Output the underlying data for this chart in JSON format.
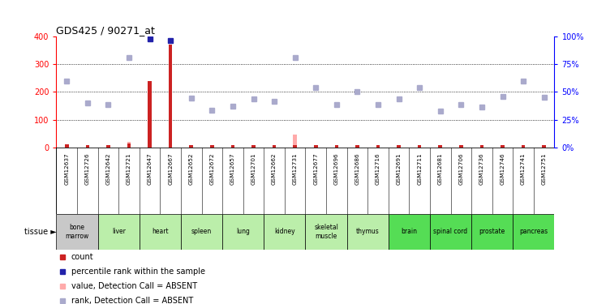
{
  "title": "GDS425 / 90271_at",
  "samples": [
    "GSM12637",
    "GSM12726",
    "GSM12642",
    "GSM12721",
    "GSM12647",
    "GSM12667",
    "GSM12652",
    "GSM12672",
    "GSM12657",
    "GSM12701",
    "GSM12662",
    "GSM12731",
    "GSM12677",
    "GSM12696",
    "GSM12686",
    "GSM12716",
    "GSM12691",
    "GSM12711",
    "GSM12681",
    "GSM12706",
    "GSM12736",
    "GSM12746",
    "GSM12741",
    "GSM12751"
  ],
  "tissue_defs": [
    {
      "name": "bone\nmarrow",
      "start": 0,
      "end": 2,
      "color": "#c8c8c8"
    },
    {
      "name": "liver",
      "start": 2,
      "end": 4,
      "color": "#bbeeaa"
    },
    {
      "name": "heart",
      "start": 4,
      "end": 6,
      "color": "#bbeeaa"
    },
    {
      "name": "spleen",
      "start": 6,
      "end": 8,
      "color": "#bbeeaa"
    },
    {
      "name": "lung",
      "start": 8,
      "end": 10,
      "color": "#bbeeaa"
    },
    {
      "name": "kidney",
      "start": 10,
      "end": 12,
      "color": "#bbeeaa"
    },
    {
      "name": "skeletal\nmuscle",
      "start": 12,
      "end": 14,
      "color": "#bbeeaa"
    },
    {
      "name": "thymus",
      "start": 14,
      "end": 16,
      "color": "#bbeeaa"
    },
    {
      "name": "brain",
      "start": 16,
      "end": 18,
      "color": "#55dd55"
    },
    {
      "name": "spinal cord",
      "start": 18,
      "end": 20,
      "color": "#55dd55"
    },
    {
      "name": "prostate",
      "start": 20,
      "end": 22,
      "color": "#55dd55"
    },
    {
      "name": "pancreas",
      "start": 22,
      "end": 24,
      "color": "#55dd55"
    }
  ],
  "red_bars": [
    {
      "idx": 0,
      "val": 10
    },
    {
      "idx": 1,
      "val": 8
    },
    {
      "idx": 2,
      "val": 8
    },
    {
      "idx": 3,
      "val": 15
    },
    {
      "idx": 4,
      "val": 240
    },
    {
      "idx": 5,
      "val": 370
    },
    {
      "idx": 6,
      "val": 8
    },
    {
      "idx": 7,
      "val": 8
    },
    {
      "idx": 8,
      "val": 8
    },
    {
      "idx": 9,
      "val": 8
    },
    {
      "idx": 10,
      "val": 8
    },
    {
      "idx": 11,
      "val": 8
    },
    {
      "idx": 12,
      "val": 8
    },
    {
      "idx": 13,
      "val": 8
    },
    {
      "idx": 14,
      "val": 8
    },
    {
      "idx": 15,
      "val": 8
    },
    {
      "idx": 16,
      "val": 8
    },
    {
      "idx": 17,
      "val": 8
    },
    {
      "idx": 18,
      "val": 8
    },
    {
      "idx": 19,
      "val": 8
    },
    {
      "idx": 20,
      "val": 8
    },
    {
      "idx": 21,
      "val": 8
    },
    {
      "idx": 22,
      "val": 8
    },
    {
      "idx": 23,
      "val": 8
    }
  ],
  "pink_bars": [
    {
      "idx": 0,
      "val": 12
    },
    {
      "idx": 1,
      "val": 8
    },
    {
      "idx": 2,
      "val": 8
    },
    {
      "idx": 3,
      "val": 20
    },
    {
      "idx": 6,
      "val": 8
    },
    {
      "idx": 7,
      "val": 8
    },
    {
      "idx": 8,
      "val": 8
    },
    {
      "idx": 9,
      "val": 8
    },
    {
      "idx": 10,
      "val": 8
    },
    {
      "idx": 11,
      "val": 45
    },
    {
      "idx": 12,
      "val": 8
    },
    {
      "idx": 13,
      "val": 8
    },
    {
      "idx": 14,
      "val": 8
    },
    {
      "idx": 15,
      "val": 8
    },
    {
      "idx": 16,
      "val": 8
    },
    {
      "idx": 17,
      "val": 8
    },
    {
      "idx": 18,
      "val": 8
    },
    {
      "idx": 19,
      "val": 8
    },
    {
      "idx": 20,
      "val": 8
    },
    {
      "idx": 21,
      "val": 8
    },
    {
      "idx": 22,
      "val": 8
    },
    {
      "idx": 23,
      "val": 8
    }
  ],
  "blue_squares": [
    {
      "idx": 4,
      "val": 390
    },
    {
      "idx": 5,
      "val": 385
    }
  ],
  "light_blue_squares": [
    {
      "idx": 0,
      "val": 240
    },
    {
      "idx": 1,
      "val": 160
    },
    {
      "idx": 2,
      "val": 155
    },
    {
      "idx": 3,
      "val": 325
    },
    {
      "idx": 6,
      "val": 178
    },
    {
      "idx": 7,
      "val": 135
    },
    {
      "idx": 8,
      "val": 148
    },
    {
      "idx": 9,
      "val": 175
    },
    {
      "idx": 10,
      "val": 165
    },
    {
      "idx": 11,
      "val": 325
    },
    {
      "idx": 12,
      "val": 215
    },
    {
      "idx": 13,
      "val": 155
    },
    {
      "idx": 14,
      "val": 200
    },
    {
      "idx": 15,
      "val": 155
    },
    {
      "idx": 16,
      "val": 175
    },
    {
      "idx": 17,
      "val": 215
    },
    {
      "idx": 18,
      "val": 130
    },
    {
      "idx": 19,
      "val": 155
    },
    {
      "idx": 20,
      "val": 145
    },
    {
      "idx": 21,
      "val": 185
    },
    {
      "idx": 22,
      "val": 240
    },
    {
      "idx": 23,
      "val": 180
    }
  ],
  "ylim_left": [
    0,
    400
  ],
  "ylim_right": [
    0,
    100
  ],
  "yticks_left": [
    0,
    100,
    200,
    300,
    400
  ],
  "yticks_right": [
    0,
    25,
    50,
    75,
    100
  ],
  "ylabel_right_labels": [
    "0%",
    "25%",
    "50%",
    "75%",
    "100%"
  ],
  "red_color": "#cc2222",
  "pink_color": "#ffaaaa",
  "blue_color": "#2222aa",
  "light_blue_color": "#aaaacc",
  "gsm_bg_color": "#d4d4d4",
  "legend_items": [
    {
      "color": "#cc2222",
      "label": "count"
    },
    {
      "color": "#2222aa",
      "label": "percentile rank within the sample"
    },
    {
      "color": "#ffaaaa",
      "label": "value, Detection Call = ABSENT"
    },
    {
      "color": "#aaaacc",
      "label": "rank, Detection Call = ABSENT"
    }
  ]
}
